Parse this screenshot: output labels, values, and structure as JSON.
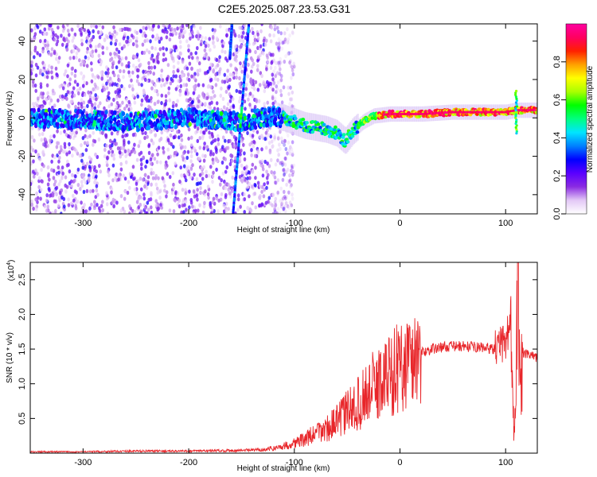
{
  "title": "C2E5.2025.087.23.53.G31",
  "chart_data": [
    {
      "type": "heatmap",
      "xlabel": "Height of straight line (km)",
      "ylabel": "Frequency (Hz)",
      "xlim": [
        -350,
        130
      ],
      "ylim": [
        -50,
        49
      ],
      "xticks": [
        -300,
        -200,
        -100,
        0,
        100
      ],
      "yticks": [
        -40,
        -20,
        0,
        20,
        40
      ],
      "colorbar": {
        "label": "Normalized spectral amplitude",
        "range": [
          0,
          1
        ],
        "ticks": [
          "0.0",
          "0.2",
          "0.4",
          "0.6",
          "0.8"
        ],
        "colors": [
          "#ffffff",
          "#e3c8f6",
          "#8a2be2",
          "#5a00ff",
          "#0000ff",
          "#0080ff",
          "#00e5ff",
          "#00ff80",
          "#00ff00",
          "#aaff00",
          "#ffff00",
          "#ffa000",
          "#ff2000",
          "#ff0060",
          "#ff00a0"
        ]
      },
      "trace": {
        "name": "",
        "points": [
          [
            -350,
            0
          ],
          [
            -300,
            -1
          ],
          [
            -250,
            -2
          ],
          [
            -200,
            0
          ],
          [
            -150,
            -2
          ],
          [
            -120,
            1
          ],
          [
            -110,
            0
          ],
          [
            -100,
            -2
          ],
          [
            -90,
            -4
          ],
          [
            -80,
            -5
          ],
          [
            -70,
            -6
          ],
          [
            -60,
            -8
          ],
          [
            -52,
            -12
          ],
          [
            -45,
            -7
          ],
          [
            -35,
            -2
          ],
          [
            -25,
            1
          ],
          [
            -10,
            2
          ],
          [
            0,
            2
          ],
          [
            20,
            2
          ],
          [
            50,
            3
          ],
          [
            80,
            3
          ],
          [
            100,
            3
          ],
          [
            110,
            4
          ],
          [
            130,
            4
          ]
        ]
      },
      "noise_region_x": [
        -350,
        -110
      ],
      "streaks": [
        {
          "x0": -143,
          "f0": 49,
          "x1": -158,
          "f1": -50
        },
        {
          "x0": -159,
          "f0": 49,
          "x1": -161,
          "f1": 31
        }
      ]
    },
    {
      "type": "line",
      "xlabel": "Height of straight line (km)",
      "ylabel": "SNR (10 * v/v)",
      "yscale_label": "(x10",
      "yscale_exp": "4",
      "xlim": [
        -350,
        130
      ],
      "ylim": [
        0,
        27500
      ],
      "xticks": [
        -300,
        -200,
        -100,
        0,
        100
      ],
      "yticks": [
        "0.5",
        "1.0",
        "1.5",
        "2.0",
        "2.5"
      ],
      "ytick_values": [
        5000,
        10000,
        15000,
        20000,
        25000
      ],
      "color": "#e8262a",
      "series": [
        {
          "name": "",
          "x": [
            -350,
            -300,
            -250,
            -200,
            -150,
            -130,
            -120,
            -110,
            -100,
            -90,
            -80,
            -70,
            -60,
            -50,
            -40,
            -30,
            -20,
            -10,
            0,
            10,
            20,
            30,
            40,
            50,
            60,
            70,
            80,
            90,
            95,
            100,
            104,
            106,
            108,
            110,
            112,
            114,
            116,
            120,
            125,
            130
          ],
          "y": [
            200,
            200,
            300,
            300,
            400,
            500,
            700,
            1000,
            1500,
            2000,
            2800,
            3500,
            4500,
            6000,
            7000,
            9000,
            10000,
            11500,
            12500,
            13500,
            14500,
            15000,
            15300,
            15400,
            15400,
            15300,
            15200,
            15000,
            15500,
            16000,
            19000,
            12000,
            3000,
            15000,
            27500,
            6000,
            14500,
            14200,
            14000,
            13800
          ]
        }
      ]
    }
  ]
}
